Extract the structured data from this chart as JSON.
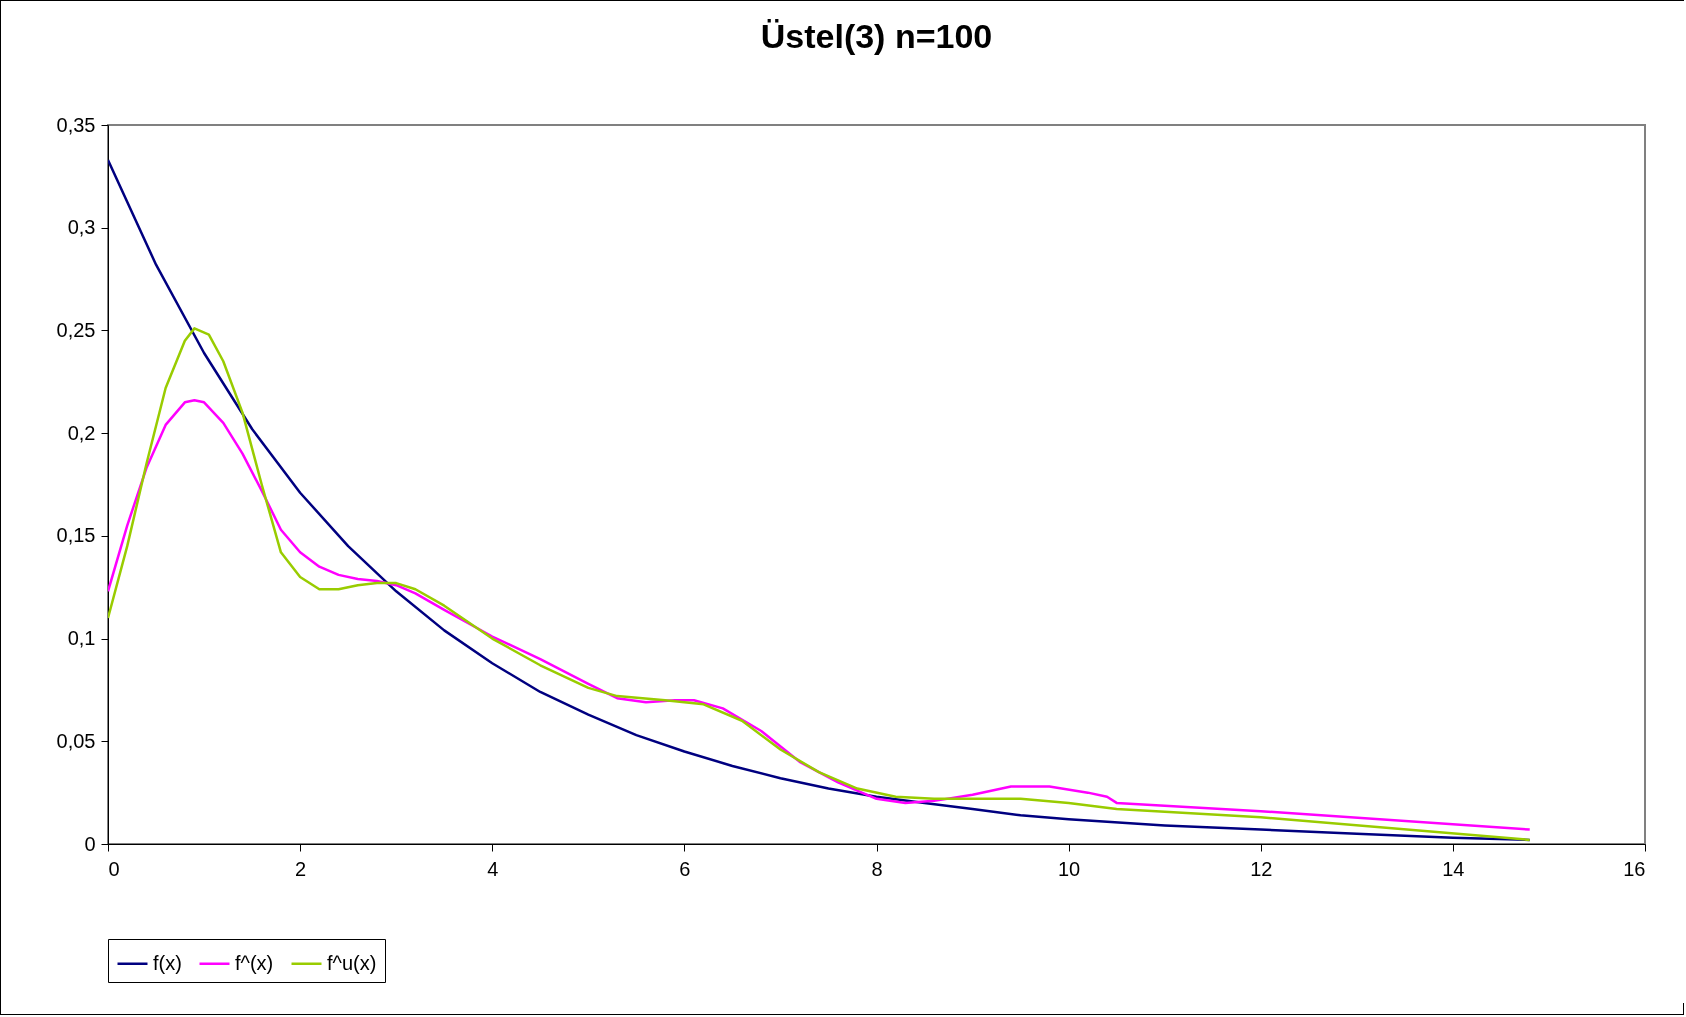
{
  "chart_data": {
    "type": "line",
    "title": "Üstel(3) n=100",
    "xlim": [
      0,
      16
    ],
    "xticks": [
      0,
      2,
      4,
      6,
      8,
      10,
      12,
      14,
      16
    ],
    "ylim": [
      0,
      0.35
    ],
    "yticks": [
      {
        "value": 0,
        "label": "0"
      },
      {
        "value": 0.05,
        "label": "0,05"
      },
      {
        "value": 0.1,
        "label": "0,1"
      },
      {
        "value": 0.15,
        "label": "0,15"
      },
      {
        "value": 0.2,
        "label": "0,2"
      },
      {
        "value": 0.25,
        "label": "0,25"
      },
      {
        "value": 0.3,
        "label": "0,3"
      },
      {
        "value": 0.35,
        "label": "0,35"
      }
    ],
    "grid": false,
    "legend": "bottom",
    "marker": "none",
    "line_style": "solid",
    "series": [
      {
        "name": "f(x)",
        "color": "#000080",
        "x": [
          0,
          0.5,
          1,
          1.5,
          2,
          2.5,
          3,
          3.5,
          4,
          4.5,
          5,
          5.5,
          6,
          6.5,
          7,
          7.5,
          8,
          8.5,
          9,
          9.5,
          10,
          11,
          12,
          13,
          14,
          14.8
        ],
        "values": [
          0.333,
          0.282,
          0.239,
          0.202,
          0.171,
          0.145,
          0.123,
          0.104,
          0.088,
          0.074,
          0.063,
          0.053,
          0.045,
          0.038,
          0.032,
          0.027,
          0.023,
          0.02,
          0.017,
          0.014,
          0.012,
          0.009,
          0.007,
          0.005,
          0.003,
          0.002
        ]
      },
      {
        "name": "f^(x)",
        "color": "#ff00ff",
        "x": [
          0,
          0.2,
          0.4,
          0.6,
          0.8,
          0.9,
          1,
          1.2,
          1.4,
          1.6,
          1.8,
          2,
          2.2,
          2.4,
          2.6,
          2.8,
          3,
          3.2,
          3.5,
          4,
          4.5,
          5,
          5.3,
          5.6,
          5.9,
          6.1,
          6.4,
          6.8,
          7.2,
          7.6,
          8,
          8.3,
          8.6,
          9,
          9.4,
          9.8,
          10.2,
          10.4,
          10.5,
          12,
          14.8
        ],
        "values": [
          0.123,
          0.155,
          0.183,
          0.204,
          0.215,
          0.216,
          0.215,
          0.205,
          0.19,
          0.172,
          0.153,
          0.142,
          0.135,
          0.131,
          0.129,
          0.128,
          0.126,
          0.122,
          0.114,
          0.101,
          0.09,
          0.078,
          0.071,
          0.069,
          0.07,
          0.07,
          0.066,
          0.055,
          0.04,
          0.03,
          0.022,
          0.02,
          0.021,
          0.024,
          0.028,
          0.028,
          0.025,
          0.023,
          0.02,
          0.016,
          0.007
        ]
      },
      {
        "name": "f^u(x)",
        "color": "#99cc00",
        "x": [
          0,
          0.2,
          0.4,
          0.6,
          0.8,
          0.9,
          1.05,
          1.2,
          1.4,
          1.6,
          1.8,
          2,
          2.2,
          2.4,
          2.6,
          2.8,
          3,
          3.2,
          3.5,
          4,
          4.5,
          5,
          5.3,
          5.8,
          6.2,
          6.6,
          7,
          7.4,
          7.8,
          8.2,
          8.6,
          9,
          9.5,
          10,
          10.5,
          12,
          14.8
        ],
        "values": [
          0.11,
          0.145,
          0.185,
          0.222,
          0.245,
          0.251,
          0.248,
          0.235,
          0.21,
          0.175,
          0.142,
          0.13,
          0.124,
          0.124,
          0.126,
          0.127,
          0.127,
          0.124,
          0.116,
          0.1,
          0.087,
          0.076,
          0.072,
          0.07,
          0.068,
          0.06,
          0.046,
          0.035,
          0.027,
          0.023,
          0.022,
          0.022,
          0.022,
          0.02,
          0.017,
          0.013,
          0.002
        ]
      }
    ]
  }
}
